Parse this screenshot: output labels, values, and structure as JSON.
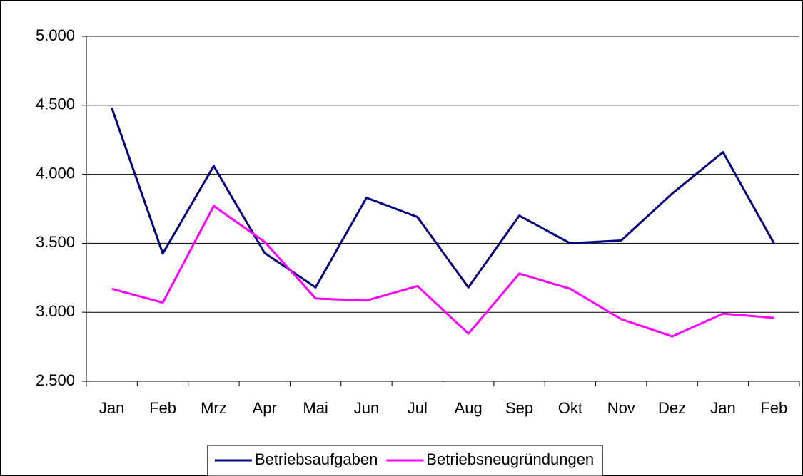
{
  "chart_data": {
    "type": "line",
    "categories": [
      "Jan",
      "Feb",
      "Mrz",
      "Apr",
      "Mai",
      "Jun",
      "Jul",
      "Aug",
      "Sep",
      "Okt",
      "Nov",
      "Dez",
      "Jan",
      "Feb"
    ],
    "series": [
      {
        "name": "Betriebsaufgaben",
        "color": "#000080",
        "values": [
          4480,
          3425,
          4060,
          3430,
          3180,
          3830,
          3690,
          3180,
          3700,
          3500,
          3520,
          3860,
          4160,
          3500
        ]
      },
      {
        "name": "Betriebsneugründungen",
        "color": "#ff00ff",
        "values": [
          3170,
          3070,
          3770,
          3510,
          3100,
          3085,
          3190,
          2845,
          3280,
          3170,
          2950,
          2825,
          2990,
          2960
        ]
      }
    ],
    "ylim": [
      2500,
      5000
    ],
    "yticks": [
      {
        "value": 2500,
        "label": "2.500"
      },
      {
        "value": 3000,
        "label": "3.000"
      },
      {
        "value": 3500,
        "label": "3.500"
      },
      {
        "value": 4000,
        "label": "4.000"
      },
      {
        "value": 4500,
        "label": "4.500"
      },
      {
        "value": 5000,
        "label": "5.000"
      }
    ],
    "grid": true,
    "legend": "bottom"
  }
}
